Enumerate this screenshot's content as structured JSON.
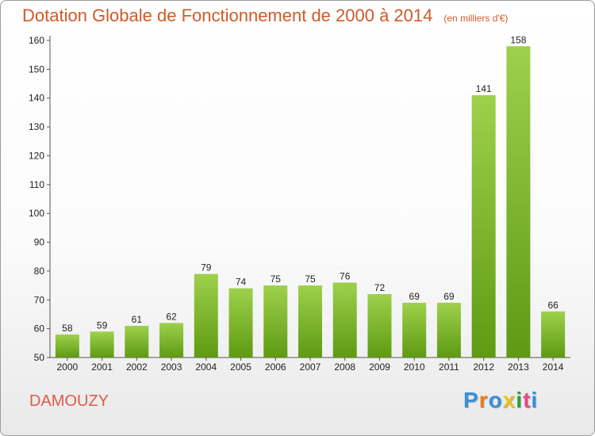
{
  "chart_data": {
    "type": "bar",
    "title": "Dotation Globale de Fonctionnement de 2000 à 2014",
    "subtitle": "(en milliers d'€)",
    "categories": [
      "2000",
      "2001",
      "2002",
      "2003",
      "2004",
      "2005",
      "2006",
      "2007",
      "2008",
      "2009",
      "2010",
      "2011",
      "2012",
      "2013",
      "2014"
    ],
    "values": [
      58,
      59,
      61,
      62,
      79,
      74,
      75,
      75,
      76,
      72,
      69,
      69,
      141,
      158,
      66
    ],
    "ylim": [
      50,
      160
    ],
    "yticks": [
      50,
      60,
      70,
      80,
      90,
      100,
      110,
      120,
      130,
      140,
      150,
      160
    ],
    "grid": false,
    "colors": {
      "bar_top": "#9ed14b",
      "bar_bottom": "#5e9a12",
      "title": "#d05a28"
    }
  },
  "footer": {
    "commune": "DAMOUZY",
    "logo_letters": [
      "P",
      "r",
      "o",
      "x",
      "i",
      "t",
      "i"
    ],
    "logo_colors": [
      "#3a8fd8",
      "#f07a1a",
      "#3a8fd8",
      "#e8c21a",
      "#2f9e3a",
      "#e84a8a",
      "#3a8fd8"
    ]
  }
}
